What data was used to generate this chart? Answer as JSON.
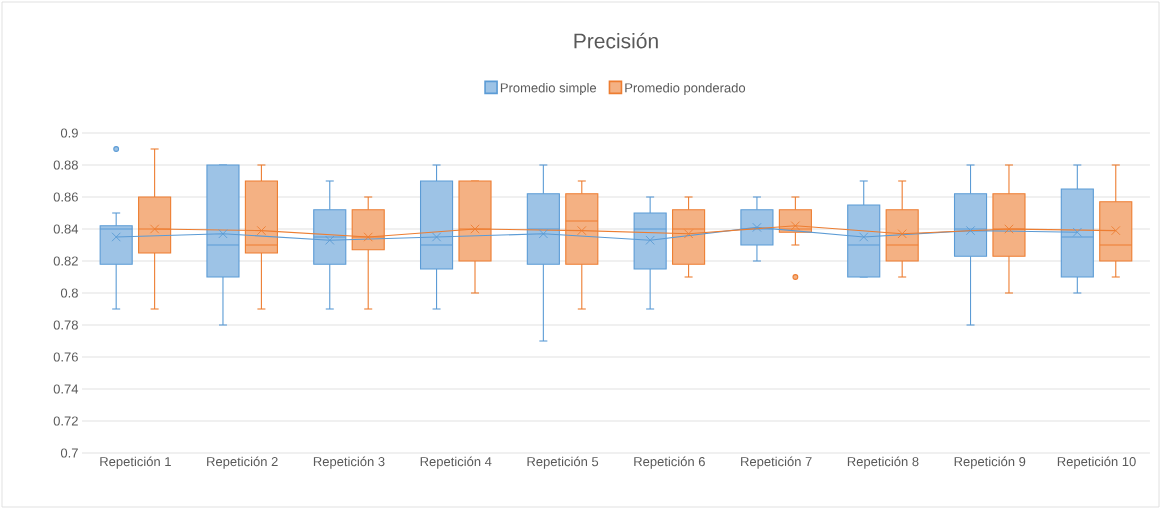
{
  "chart_data": {
    "type": "box",
    "title": "Precisión",
    "categories": [
      "Repetición 1",
      "Repetición 2",
      "Repetición 3",
      "Repetición 4",
      "Repetición 5",
      "Repetición 6",
      "Repetición 7",
      "Repetición 8",
      "Repetición 9",
      "Repetición 10"
    ],
    "series": [
      {
        "name": "Promedio simple",
        "color": "#5b9bd5",
        "boxes": [
          {
            "low": 0.79,
            "q1": 0.818,
            "median": 0.84,
            "q3": 0.842,
            "high": 0.85,
            "mean": 0.835,
            "outliers": [
              0.89
            ]
          },
          {
            "low": 0.78,
            "q1": 0.81,
            "median": 0.83,
            "q3": 0.88,
            "high": 0.88,
            "mean": 0.837
          },
          {
            "low": 0.79,
            "q1": 0.818,
            "median": 0.835,
            "q3": 0.852,
            "high": 0.87,
            "mean": 0.833
          },
          {
            "low": 0.79,
            "q1": 0.815,
            "median": 0.83,
            "q3": 0.87,
            "high": 0.88,
            "mean": 0.835
          },
          {
            "low": 0.77,
            "q1": 0.818,
            "median": 0.84,
            "q3": 0.862,
            "high": 0.88,
            "mean": 0.837
          },
          {
            "low": 0.79,
            "q1": 0.815,
            "median": 0.84,
            "q3": 0.85,
            "high": 0.86,
            "mean": 0.833
          },
          {
            "low": 0.82,
            "q1": 0.83,
            "median": 0.84,
            "q3": 0.852,
            "high": 0.86,
            "mean": 0.841
          },
          {
            "low": 0.81,
            "q1": 0.81,
            "median": 0.83,
            "q3": 0.855,
            "high": 0.87,
            "mean": 0.835
          },
          {
            "low": 0.78,
            "q1": 0.823,
            "median": 0.84,
            "q3": 0.862,
            "high": 0.88,
            "mean": 0.839
          },
          {
            "low": 0.8,
            "q1": 0.81,
            "median": 0.835,
            "q3": 0.865,
            "high": 0.88,
            "mean": 0.838
          }
        ]
      },
      {
        "name": "Promedio ponderado",
        "color": "#ed7d31",
        "boxes": [
          {
            "low": 0.79,
            "q1": 0.825,
            "median": 0.84,
            "q3": 0.86,
            "high": 0.89,
            "mean": 0.84
          },
          {
            "low": 0.79,
            "q1": 0.825,
            "median": 0.83,
            "q3": 0.87,
            "high": 0.88,
            "mean": 0.839
          },
          {
            "low": 0.79,
            "q1": 0.827,
            "median": 0.835,
            "q3": 0.852,
            "high": 0.86,
            "mean": 0.835
          },
          {
            "low": 0.8,
            "q1": 0.82,
            "median": 0.84,
            "q3": 0.87,
            "high": 0.87,
            "mean": 0.84
          },
          {
            "low": 0.79,
            "q1": 0.818,
            "median": 0.845,
            "q3": 0.862,
            "high": 0.87,
            "mean": 0.839
          },
          {
            "low": 0.81,
            "q1": 0.818,
            "median": 0.84,
            "q3": 0.852,
            "high": 0.86,
            "mean": 0.837
          },
          {
            "low": 0.83,
            "q1": 0.838,
            "median": 0.84,
            "q3": 0.852,
            "high": 0.86,
            "mean": 0.842,
            "outliers": [
              0.81
            ]
          },
          {
            "low": 0.81,
            "q1": 0.82,
            "median": 0.83,
            "q3": 0.852,
            "high": 0.87,
            "mean": 0.837
          },
          {
            "low": 0.8,
            "q1": 0.823,
            "median": 0.84,
            "q3": 0.862,
            "high": 0.88,
            "mean": 0.84
          },
          {
            "low": 0.81,
            "q1": 0.82,
            "median": 0.83,
            "q3": 0.857,
            "high": 0.88,
            "mean": 0.839
          }
        ]
      },
      {
        "type": "line",
        "color": "#5b9bd5",
        "values": [
          0.835,
          0.837,
          0.833,
          0.835,
          0.837,
          0.833,
          0.841,
          0.835,
          0.839,
          0.838
        ]
      },
      {
        "type": "line",
        "color": "#ed7d31",
        "values": [
          0.84,
          0.839,
          0.835,
          0.84,
          0.839,
          0.837,
          0.842,
          0.837,
          0.84,
          0.839
        ]
      }
    ],
    "ylim": [
      0.7,
      0.9
    ],
    "yticks": [
      0.7,
      0.72,
      0.74,
      0.76,
      0.78,
      0.8,
      0.82,
      0.84,
      0.86,
      0.88,
      0.9
    ],
    "grid": "y",
    "legend": "top"
  }
}
